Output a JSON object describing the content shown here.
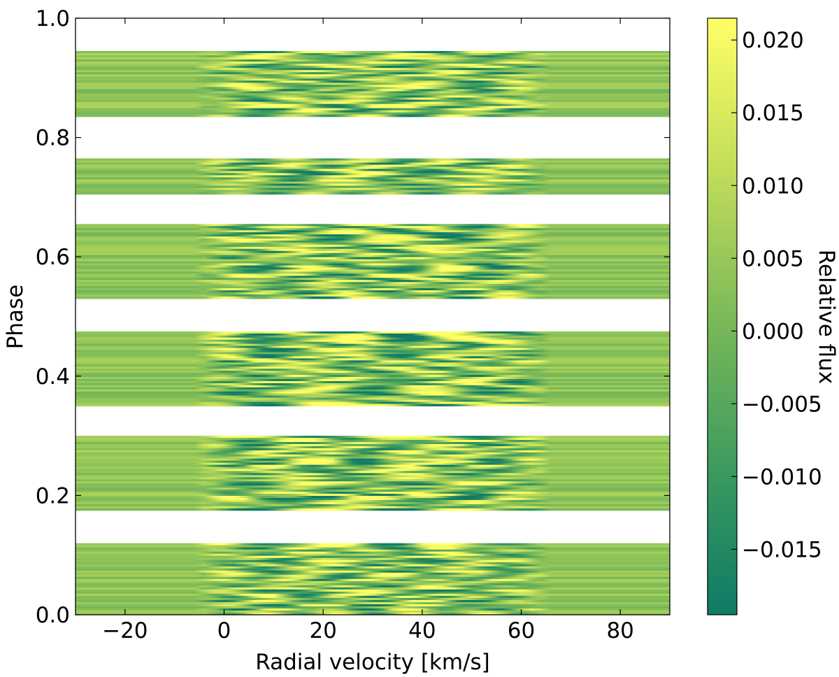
{
  "chart_data": {
    "type": "heatmap",
    "title": "",
    "xlabel": "Radial velocity [km/s]",
    "ylabel": "Phase",
    "xlim": [
      -30,
      90
    ],
    "ylim": [
      0.0,
      1.0
    ],
    "xticks": [
      -20,
      0,
      20,
      40,
      60,
      80
    ],
    "xtick_labels": [
      "−20",
      "0",
      "20",
      "40",
      "60",
      "80"
    ],
    "yticks": [
      0.0,
      0.2,
      0.4,
      0.6,
      0.8,
      1.0
    ],
    "ytick_labels": [
      "0.0",
      "0.2",
      "0.4",
      "0.6",
      "0.8",
      "1.0"
    ],
    "colorbar": {
      "label": "Relative flux",
      "range": [
        -0.0195,
        0.0215
      ],
      "ticks": [
        -0.015,
        -0.01,
        -0.005,
        0.0,
        0.005,
        0.01,
        0.015,
        0.02
      ],
      "tick_labels": [
        "−0.015",
        "−0.010",
        "−0.005",
        "0.000",
        "0.005",
        "0.010",
        "0.015",
        "0.020"
      ],
      "colors": [
        "#0f7a66",
        "#3d9b5e",
        "#7cba59",
        "#c3de5a",
        "#ffff66"
      ]
    },
    "phase_bands": [
      {
        "phase_start": 0.0,
        "phase_end": 0.12
      },
      {
        "phase_start": 0.175,
        "phase_end": 0.3
      },
      {
        "phase_start": 0.35,
        "phase_end": 0.475
      },
      {
        "phase_start": 0.53,
        "phase_end": 0.655
      },
      {
        "phase_start": 0.705,
        "phase_end": 0.765
      },
      {
        "phase_start": 0.835,
        "phase_end": 0.945
      }
    ],
    "signal_velocity_range": [
      0,
      60
    ],
    "continuum_flux": 0.004
  }
}
